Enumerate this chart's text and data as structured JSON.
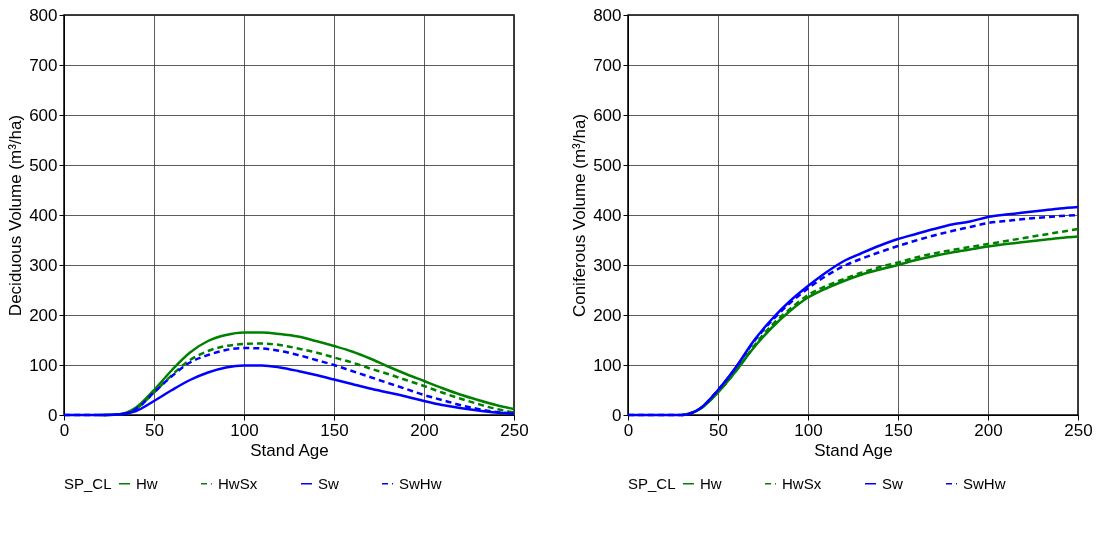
{
  "chart_data": [
    {
      "type": "line",
      "xlabel": "Stand Age",
      "ylabel": "Deciduous Volume (m³/ha)",
      "legend_title": "SP_CL",
      "legend": "bottom",
      "grid": true,
      "xlim": [
        0,
        250
      ],
      "ylim": [
        0,
        800
      ],
      "xticks": [
        0,
        50,
        100,
        150,
        200,
        250
      ],
      "yticks": [
        0,
        100,
        200,
        300,
        400,
        500,
        600,
        700,
        800
      ],
      "x": [
        0,
        10,
        20,
        30,
        40,
        50,
        60,
        70,
        80,
        90,
        100,
        110,
        120,
        130,
        140,
        150,
        160,
        170,
        180,
        190,
        200,
        210,
        220,
        230,
        240,
        250
      ],
      "series": [
        {
          "name": "Hw",
          "color": "#008000",
          "line_style": "solid",
          "values": [
            null,
            null,
            0,
            1,
            15,
            50,
            90,
            125,
            148,
            160,
            165,
            165,
            162,
            157,
            148,
            138,
            127,
            113,
            97,
            82,
            68,
            54,
            41,
            30,
            20,
            12
          ]
        },
        {
          "name": "HwSx",
          "color": "#008000",
          "line_style": "dashed",
          "values": [
            null,
            null,
            0,
            1,
            12,
            45,
            80,
            110,
            128,
            138,
            142,
            143,
            140,
            133,
            125,
            115,
            105,
            93,
            82,
            70,
            58,
            45,
            33,
            22,
            12,
            5
          ]
        },
        {
          "name": "Sw",
          "color": "#0000ff",
          "line_style": "solid",
          "values": [
            0,
            0,
            0,
            1,
            8,
            28,
            50,
            70,
            85,
            95,
            99,
            99,
            95,
            88,
            80,
            71,
            62,
            53,
            45,
            37,
            28,
            20,
            14,
            9,
            5,
            3
          ]
        },
        {
          "name": "SwHw",
          "color": "#0000ff",
          "line_style": "dashed",
          "values": [
            0,
            0,
            0,
            1,
            12,
            45,
            78,
            105,
            120,
            130,
            134,
            133,
            128,
            120,
            110,
            100,
            88,
            76,
            64,
            52,
            40,
            30,
            20,
            12,
            6,
            3
          ]
        }
      ]
    },
    {
      "type": "line",
      "xlabel": "Stand Age",
      "ylabel": "Coniferous Volume (m³/ha)",
      "legend_title": "SP_CL",
      "legend": "bottom",
      "grid": true,
      "xlim": [
        0,
        250
      ],
      "ylim": [
        0,
        800
      ],
      "xticks": [
        0,
        50,
        100,
        150,
        200,
        250
      ],
      "yticks": [
        0,
        100,
        200,
        300,
        400,
        500,
        600,
        700,
        800
      ],
      "x": [
        0,
        10,
        20,
        30,
        40,
        50,
        60,
        70,
        80,
        90,
        100,
        110,
        120,
        130,
        140,
        150,
        160,
        170,
        180,
        190,
        200,
        210,
        220,
        230,
        240,
        250
      ],
      "series": [
        {
          "name": "Hw",
          "color": "#008000",
          "line_style": "solid",
          "values": [
            null,
            null,
            null,
            0,
            12,
            45,
            88,
            135,
            175,
            208,
            235,
            253,
            268,
            281,
            291,
            300,
            310,
            318,
            325,
            331,
            337,
            342,
            346,
            350,
            354,
            357
          ]
        },
        {
          "name": "HwSx",
          "color": "#008000",
          "line_style": "dashed",
          "values": [
            null,
            null,
            null,
            0,
            12,
            46,
            88,
            138,
            180,
            212,
            240,
            258,
            272,
            285,
            296,
            305,
            315,
            323,
            330,
            336,
            342,
            348,
            354,
            360,
            366,
            372
          ]
        },
        {
          "name": "Sw",
          "color": "#0000ff",
          "line_style": "solid",
          "values": [
            0,
            0,
            0,
            0,
            13,
            50,
            96,
            149,
            192,
            228,
            258,
            285,
            308,
            324,
            339,
            352,
            362,
            372,
            381,
            387,
            396,
            401,
            405,
            409,
            413,
            416
          ]
        },
        {
          "name": "SwHw",
          "color": "#0000ff",
          "line_style": "dashed",
          "values": [
            0,
            0,
            0,
            0,
            13,
            50,
            95,
            147,
            189,
            224,
            253,
            278,
            298,
            313,
            326,
            338,
            349,
            359,
            368,
            376,
            384,
            388,
            392,
            395,
            398,
            400
          ]
        }
      ]
    }
  ]
}
